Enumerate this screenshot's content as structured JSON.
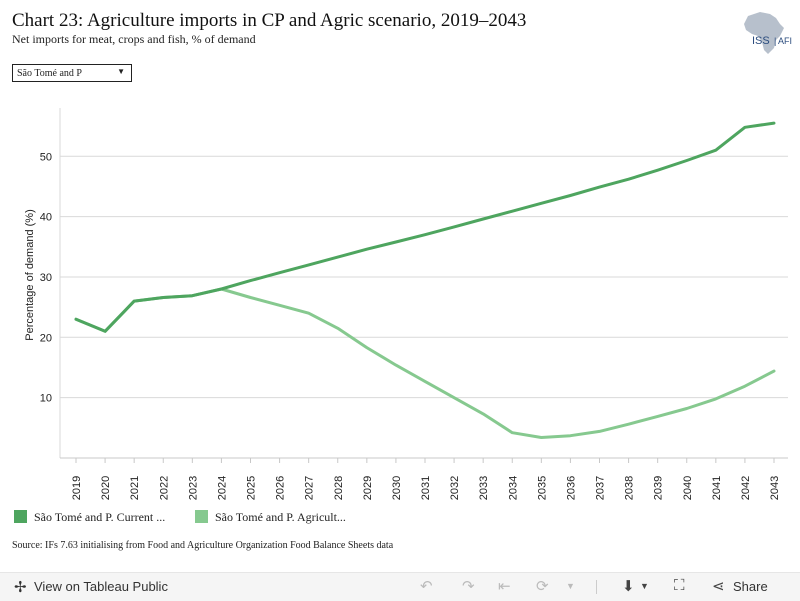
{
  "header": {
    "title": "Chart 23: Agriculture imports in CP and Agric scenario, 2019–2043",
    "subtitle": "Net imports for meat, crops and fish, % of demand"
  },
  "logo": {
    "text": "ISS",
    "suffix": "AFI"
  },
  "filter": {
    "selected": "São Tomé and P"
  },
  "legend": {
    "items": [
      {
        "label": "São Tomé and P. Current ...",
        "color": "#4ea55f"
      },
      {
        "label": "São Tomé and P. Agricult...",
        "color": "#86c98f"
      }
    ]
  },
  "source": "Source: IFs 7.63 initialising from Food and Agriculture Organization Food Balance Sheets data",
  "footer": {
    "view_label": "View on Tableau Public",
    "share_label": "Share"
  },
  "chart_data": {
    "type": "line",
    "x": [
      2019,
      2020,
      2021,
      2022,
      2023,
      2024,
      2025,
      2026,
      2027,
      2028,
      2029,
      2030,
      2031,
      2032,
      2033,
      2034,
      2035,
      2036,
      2037,
      2038,
      2039,
      2040,
      2041,
      2042,
      2043
    ],
    "series": [
      {
        "name": "São Tomé and P. Current ...",
        "color": "#4ea55f",
        "values": [
          23.0,
          21.0,
          26.0,
          26.6,
          26.9,
          28.0,
          29.4,
          30.7,
          32.0,
          33.3,
          34.6,
          35.8,
          37.0,
          38.3,
          39.6,
          40.9,
          42.2,
          43.5,
          44.9,
          46.2,
          47.7,
          49.3,
          51.0,
          54.8,
          55.5
        ]
      },
      {
        "name": "São Tomé and P. Agricult...",
        "color": "#86c98f",
        "values": [
          23.0,
          21.0,
          26.0,
          26.6,
          26.9,
          28.0,
          26.6,
          25.3,
          24.0,
          21.5,
          18.3,
          15.4,
          12.7,
          10.0,
          7.3,
          4.2,
          3.4,
          3.7,
          4.4,
          5.6,
          6.9,
          8.2,
          9.8,
          11.9,
          14.4
        ]
      }
    ],
    "ylabel": "Percentage of demand (%)",
    "yticks": [
      10,
      20,
      30,
      40,
      50
    ],
    "ylim": [
      0,
      58
    ],
    "grid": true
  }
}
